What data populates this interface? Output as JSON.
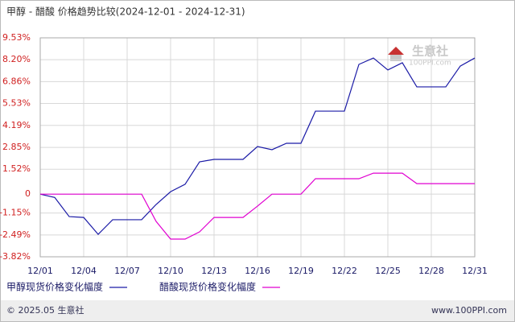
{
  "chart_data": {
    "type": "line",
    "title": "甲醇 - 醋酸 价格趋势比较(2024-12-01 - 2024-12-31)",
    "watermark": "生意社",
    "watermark_sub": "100PPI.com",
    "footer_left": "© 2025.05 生意社",
    "footer_right": "www.100PPI.com",
    "categories": [
      "12/01",
      null,
      null,
      "12/04",
      null,
      null,
      "12/07",
      null,
      null,
      "12/10",
      null,
      null,
      "12/13",
      null,
      null,
      "12/16",
      null,
      null,
      "12/19",
      null,
      null,
      "12/22",
      null,
      null,
      "12/25",
      null,
      null,
      "12/28",
      null,
      null,
      "12/31"
    ],
    "series": [
      {
        "name": "甲醇现货价格变化幅度",
        "color": "#1a1aa6",
        "values": [
          0,
          -0.2,
          -1.37,
          -1.42,
          -2.45,
          -1.56,
          -1.56,
          -1.56,
          -0.63,
          0.15,
          0.6,
          1.97,
          2.12,
          2.12,
          2.12,
          2.9,
          2.71,
          3.1,
          3.1,
          5.06,
          5.06,
          5.06,
          7.91,
          8.3,
          7.57,
          8.01,
          6.54,
          6.54,
          6.54,
          7.81,
          8.3
        ]
      },
      {
        "name": "醋酸现货价格变化幅度",
        "color": "#e000d0",
        "values": [
          0,
          0,
          0,
          0,
          0,
          0,
          0,
          0,
          -1.66,
          -2.74,
          -2.74,
          -2.3,
          -1.42,
          -1.42,
          -1.42,
          -0.73,
          0,
          0,
          0,
          0.94,
          0.94,
          0.94,
          0.94,
          1.28,
          1.28,
          1.28,
          0.64,
          0.64,
          0.64,
          0.64,
          0.64
        ]
      }
    ],
    "ylim": [
      -3.82,
      9.53
    ],
    "yticks": [
      {
        "value": 9.53,
        "label": "9.53%"
      },
      {
        "value": 8.2,
        "label": "8.20%"
      },
      {
        "value": 6.86,
        "label": "6.86%"
      },
      {
        "value": 5.53,
        "label": "5.53%"
      },
      {
        "value": 4.19,
        "label": "4.19%"
      },
      {
        "value": 2.85,
        "label": "2.85%"
      },
      {
        "value": 1.52,
        "label": "1.52%"
      },
      0,
      {
        "value": -1.15,
        "label": "-1.15%"
      },
      {
        "value": -2.49,
        "label": "-2.49%"
      },
      {
        "value": -3.82,
        "label": "-3.82%"
      }
    ],
    "grid": true
  }
}
